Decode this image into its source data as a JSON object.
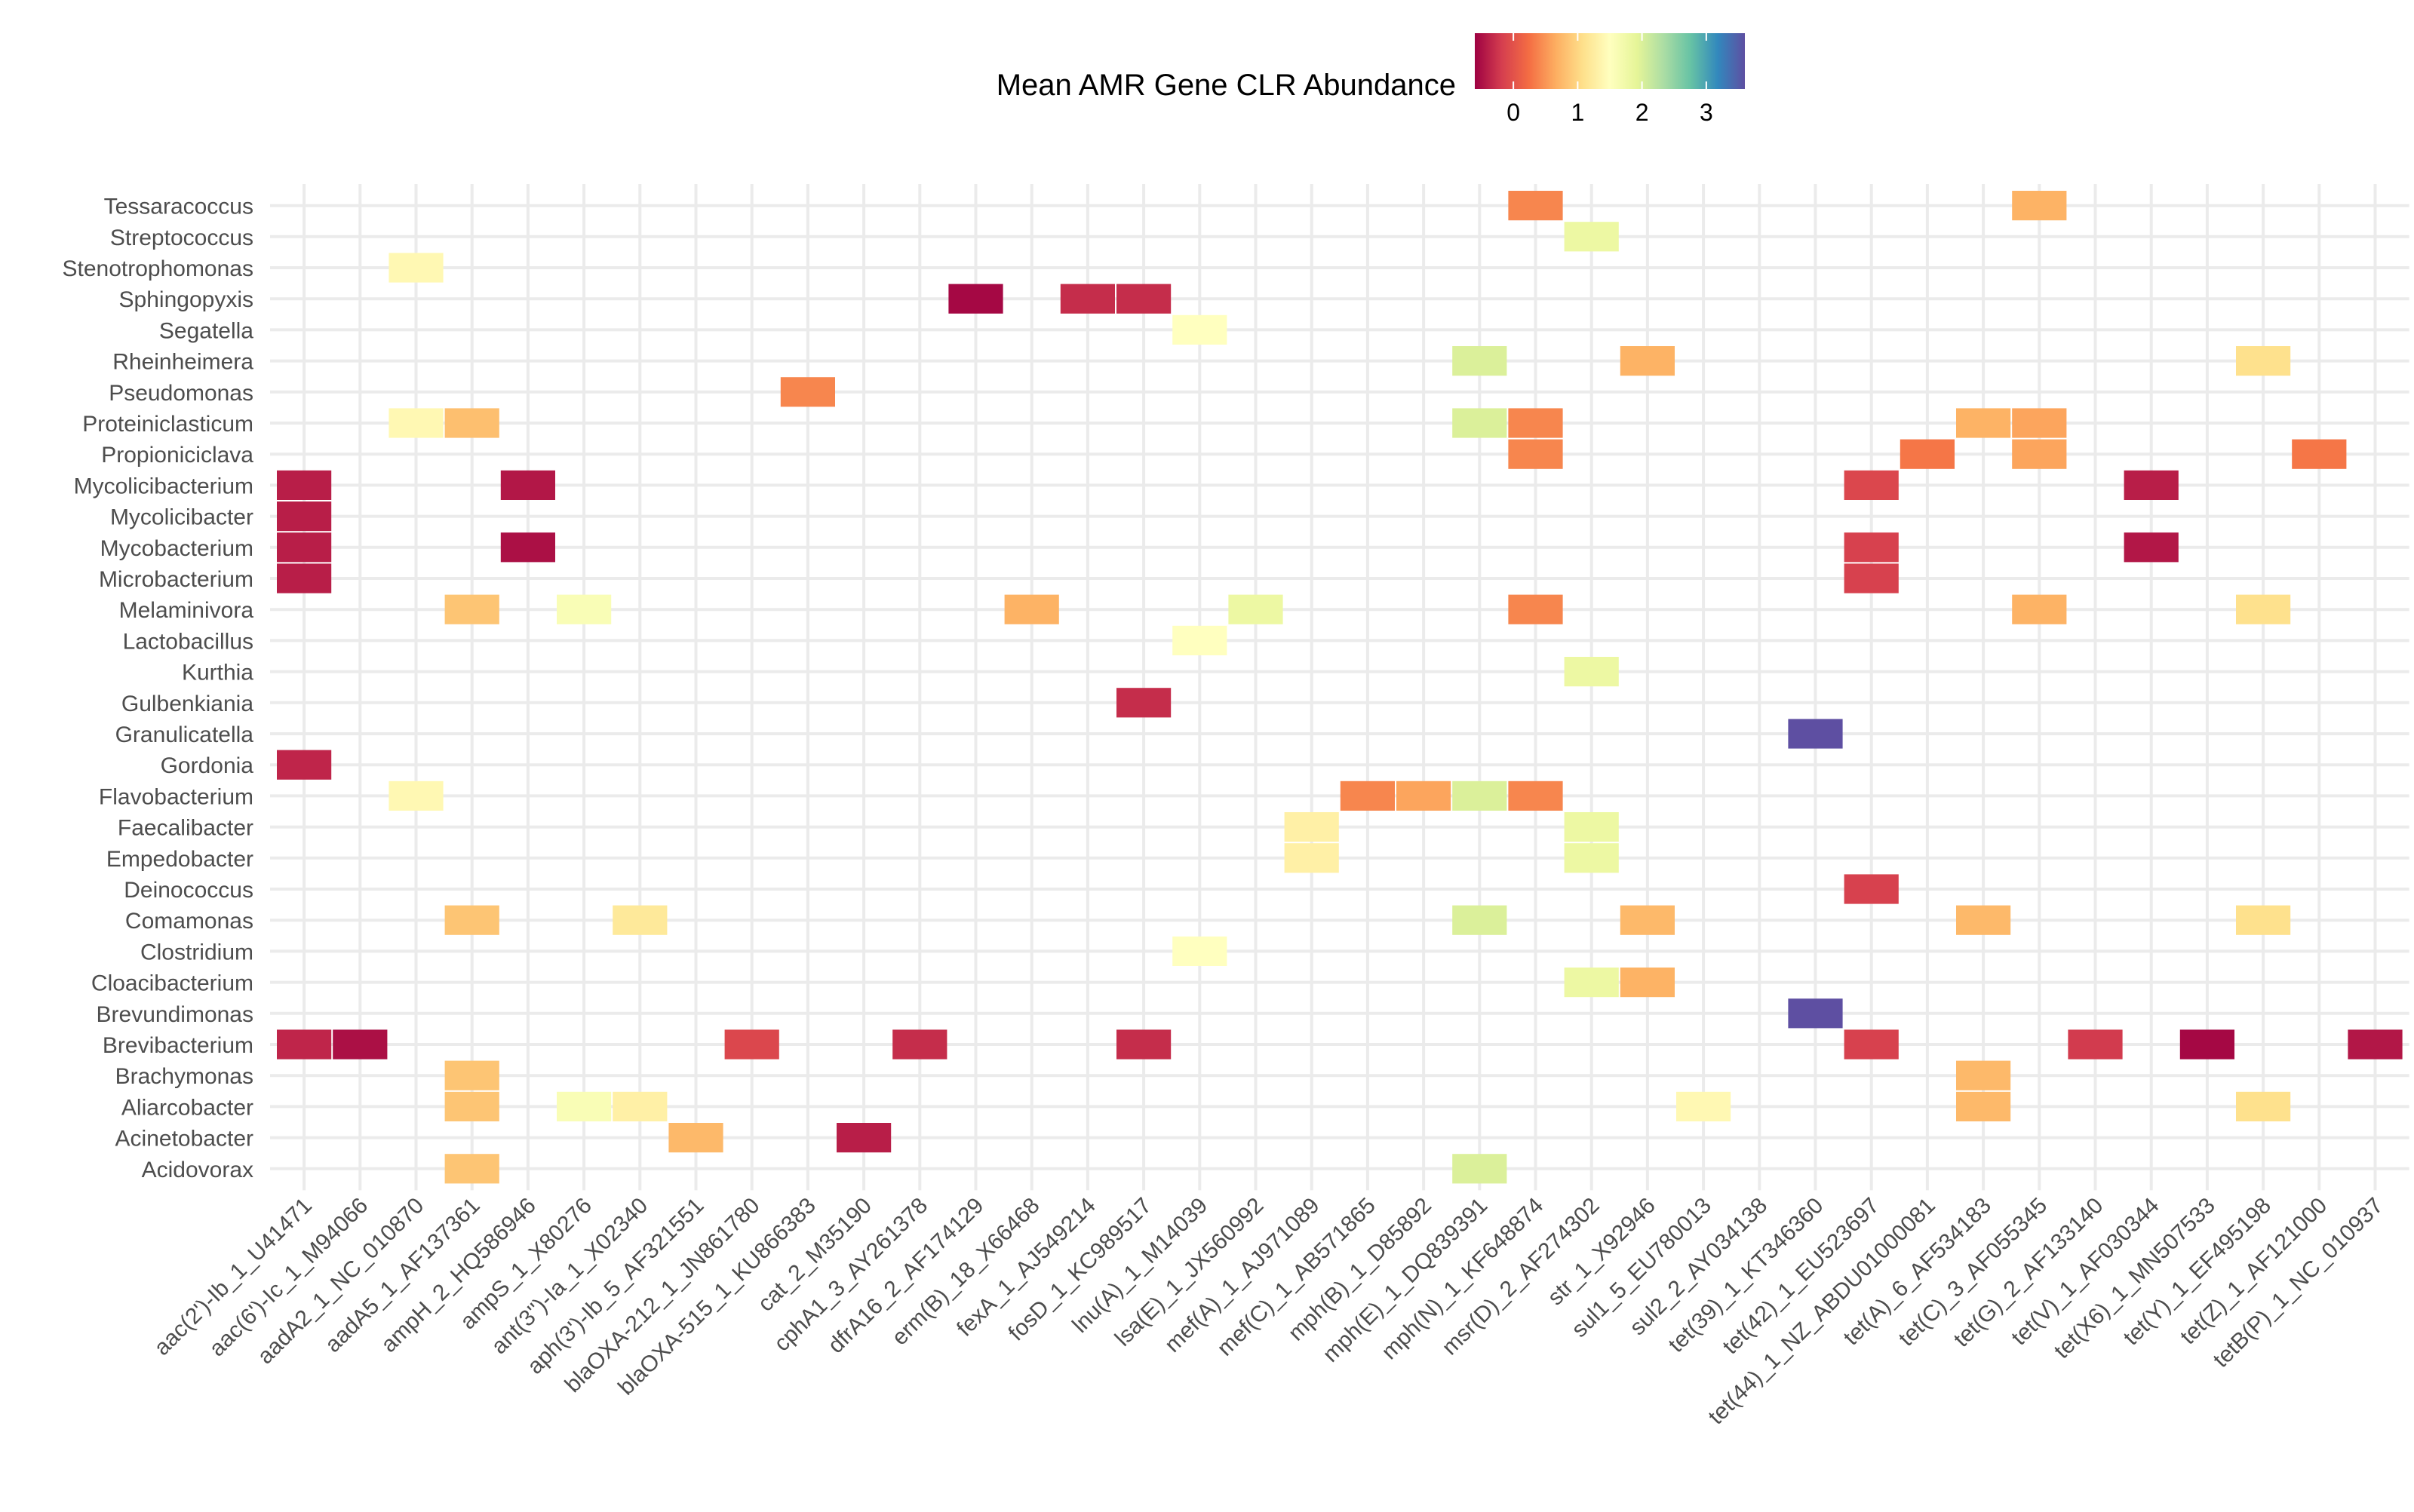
{
  "chart_data": {
    "type": "heatmap",
    "title": "",
    "xlabel": "",
    "ylabel": "",
    "legend": {
      "title": "Mean AMR Gene CLR Abundance",
      "position": "top",
      "ticks": [
        0,
        1,
        2,
        3
      ],
      "range": [
        -0.6,
        3.6
      ],
      "colors": [
        "#9e0142",
        "#d53e4f",
        "#f46d43",
        "#fdae61",
        "#fee08b",
        "#ffffbf",
        "#e6f598",
        "#abdda4",
        "#66c2a5",
        "#3288bd",
        "#5e4fa2"
      ]
    },
    "grid": true,
    "x_categories": [
      "aac(2')-Ib_1_U41471",
      "aac(6')-Ic_1_M94066",
      "aadA2_1_NC_010870",
      "aadA5_1_AF137361",
      "ampH_2_HQ586946",
      "ampS_1_X80276",
      "ant(3'')-Ia_1_X02340",
      "aph(3')-Ib_5_AF321551",
      "blaOXA-212_1_JN861780",
      "blaOXA-515_1_KU866383",
      "cat_2_M35190",
      "cphA1_3_AY261378",
      "dfrA16_2_AF174129",
      "erm(B)_18_X66468",
      "fexA_1_AJ549214",
      "fosD_1_KC989517",
      "lnu(A)_1_M14039",
      "lsa(E)_1_JX560992",
      "mef(A)_1_AJ971089",
      "mef(C)_1_AB571865",
      "mph(B)_1_D85892",
      "mph(E)_1_DQ839391",
      "mph(N)_1_KF648874",
      "msr(D)_2_AF274302",
      "str_1_X92946",
      "sul1_5_EU780013",
      "sul2_2_AY034138",
      "tet(39)_1_KT346360",
      "tet(42)_1_EU523697",
      "tet(44)_1_NZ_ABDU01000081",
      "tet(A)_6_AF534183",
      "tet(C)_3_AF055345",
      "tet(G)_2_AF133140",
      "tet(V)_1_AF030344",
      "tet(X6)_1_MN507533",
      "tet(Y)_1_EF495198",
      "tet(Z)_1_AF121000",
      "tetB(P)_1_NC_010937"
    ],
    "y_categories": [
      "Tessaracoccus",
      "Streptococcus",
      "Stenotrophomonas",
      "Sphingopyxis",
      "Segatella",
      "Rheinheimera",
      "Pseudomonas",
      "Proteiniclasticum",
      "Propioniciclava",
      "Mycolicibacterium",
      "Mycolicibacter",
      "Mycobacterium",
      "Microbacterium",
      "Melaminivora",
      "Lactobacillus",
      "Kurthia",
      "Gulbenkiania",
      "Granulicatella",
      "Gordonia",
      "Flavobacterium",
      "Faecalibacter",
      "Empedobacter",
      "Deinococcus",
      "Comamonas",
      "Clostridium",
      "Cloacibacterium",
      "Brevundimonas",
      "Brevibacterium",
      "Brachymonas",
      "Aliarcobacter",
      "Acinetobacter",
      "Acidovorax"
    ],
    "cells": [
      {
        "y": "Tessaracoccus",
        "x": "mph(N)_1_KF648874",
        "value": 0.4
      },
      {
        "y": "Tessaracoccus",
        "x": "tet(C)_3_AF055345",
        "value": 0.7
      },
      {
        "y": "Streptococcus",
        "x": "msr(D)_2_AF274302",
        "value": 1.8
      },
      {
        "y": "Stenotrophomonas",
        "x": "aadA2_1_NC_010870",
        "value": 1.4
      },
      {
        "y": "Sphingopyxis",
        "x": "dfrA16_2_AF174129",
        "value": -0.55
      },
      {
        "y": "Sphingopyxis",
        "x": "fexA_1_AJ549214",
        "value": -0.3
      },
      {
        "y": "Sphingopyxis",
        "x": "fosD_1_KC989517",
        "value": -0.3
      },
      {
        "y": "Segatella",
        "x": "lnu(A)_1_M14039",
        "value": 1.5
      },
      {
        "y": "Rheinheimera",
        "x": "mph(E)_1_DQ839391",
        "value": 2.0
      },
      {
        "y": "Rheinheimera",
        "x": "str_1_X92946",
        "value": 0.7
      },
      {
        "y": "Rheinheimera",
        "x": "tet(Y)_1_EF495198",
        "value": 1.1
      },
      {
        "y": "Pseudomonas",
        "x": "blaOXA-515_1_KU866383",
        "value": 0.4
      },
      {
        "y": "Proteiniclasticum",
        "x": "aadA2_1_NC_010870",
        "value": 1.4
      },
      {
        "y": "Proteiniclasticum",
        "x": "aadA5_1_AF137361",
        "value": 0.8
      },
      {
        "y": "Proteiniclasticum",
        "x": "mph(E)_1_DQ839391",
        "value": 2.0
      },
      {
        "y": "Proteiniclasticum",
        "x": "mph(N)_1_KF648874",
        "value": 0.4
      },
      {
        "y": "Proteiniclasticum",
        "x": "tet(A)_6_AF534183",
        "value": 0.7
      },
      {
        "y": "Proteiniclasticum",
        "x": "tet(C)_3_AF055345",
        "value": 0.6
      },
      {
        "y": "Propioniciclava",
        "x": "mph(N)_1_KF648874",
        "value": 0.4
      },
      {
        "y": "Propioniciclava",
        "x": "tet(44)_1_NZ_ABDU01000081",
        "value": 0.3
      },
      {
        "y": "Propioniciclava",
        "x": "tet(C)_3_AF055345",
        "value": 0.6
      },
      {
        "y": "Propioniciclava",
        "x": "tet(Z)_1_AF121000",
        "value": 0.3
      },
      {
        "y": "Mycolicibacterium",
        "x": "aac(2')-Ib_1_U41471",
        "value": -0.4
      },
      {
        "y": "Mycolicibacterium",
        "x": "ampH_2_HQ586946",
        "value": -0.45
      },
      {
        "y": "Mycolicibacterium",
        "x": "tet(42)_1_EU523697",
        "value": -0.1
      },
      {
        "y": "Mycolicibacterium",
        "x": "tet(V)_1_AF030344",
        "value": -0.4
      },
      {
        "y": "Mycolicibacter",
        "x": "aac(2')-Ib_1_U41471",
        "value": -0.4
      },
      {
        "y": "Mycobacterium",
        "x": "aac(2')-Ib_1_U41471",
        "value": -0.4
      },
      {
        "y": "Mycobacterium",
        "x": "ampH_2_HQ586946",
        "value": -0.5
      },
      {
        "y": "Mycobacterium",
        "x": "tet(42)_1_EU523697",
        "value": -0.15
      },
      {
        "y": "Mycobacterium",
        "x": "tet(V)_1_AF030344",
        "value": -0.45
      },
      {
        "y": "Microbacterium",
        "x": "aac(2')-Ib_1_U41471",
        "value": -0.4
      },
      {
        "y": "Microbacterium",
        "x": "tet(42)_1_EU523697",
        "value": -0.15
      },
      {
        "y": "Melaminivora",
        "x": "aadA5_1_AF137361",
        "value": 0.85
      },
      {
        "y": "Melaminivora",
        "x": "ampS_1_X80276",
        "value": 1.6
      },
      {
        "y": "Melaminivora",
        "x": "erm(B)_18_X66468",
        "value": 0.7
      },
      {
        "y": "Melaminivora",
        "x": "lsa(E)_1_JX560992",
        "value": 1.8
      },
      {
        "y": "Melaminivora",
        "x": "mph(N)_1_KF648874",
        "value": 0.4
      },
      {
        "y": "Melaminivora",
        "x": "tet(C)_3_AF055345",
        "value": 0.7
      },
      {
        "y": "Melaminivora",
        "x": "tet(Y)_1_EF495198",
        "value": 1.1
      },
      {
        "y": "Lactobacillus",
        "x": "lnu(A)_1_M14039",
        "value": 1.5
      },
      {
        "y": "Kurthia",
        "x": "msr(D)_2_AF274302",
        "value": 1.8
      },
      {
        "y": "Gulbenkiania",
        "x": "fosD_1_KC989517",
        "value": -0.3
      },
      {
        "y": "Granulicatella",
        "x": "tet(39)_1_KT346360",
        "value": 3.6
      },
      {
        "y": "Gordonia",
        "x": "aac(2')-Ib_1_U41471",
        "value": -0.35
      },
      {
        "y": "Flavobacterium",
        "x": "aadA2_1_NC_010870",
        "value": 1.4
      },
      {
        "y": "Flavobacterium",
        "x": "mef(C)_1_AB571865",
        "value": 0.4
      },
      {
        "y": "Flavobacterium",
        "x": "mph(B)_1_D85892",
        "value": 0.6
      },
      {
        "y": "Flavobacterium",
        "x": "mph(E)_1_DQ839391",
        "value": 2.0
      },
      {
        "y": "Flavobacterium",
        "x": "mph(N)_1_KF648874",
        "value": 0.4
      },
      {
        "y": "Faecalibacter",
        "x": "mef(A)_1_AJ971089",
        "value": 1.3
      },
      {
        "y": "Faecalibacter",
        "x": "msr(D)_2_AF274302",
        "value": 1.8
      },
      {
        "y": "Empedobacter",
        "x": "mef(A)_1_AJ971089",
        "value": 1.3
      },
      {
        "y": "Empedobacter",
        "x": "msr(D)_2_AF274302",
        "value": 1.8
      },
      {
        "y": "Deinococcus",
        "x": "tet(42)_1_EU523697",
        "value": -0.15
      },
      {
        "y": "Comamonas",
        "x": "aadA5_1_AF137361",
        "value": 0.85
      },
      {
        "y": "Comamonas",
        "x": "ant(3'')-Ia_1_X02340",
        "value": 1.2
      },
      {
        "y": "Comamonas",
        "x": "mph(E)_1_DQ839391",
        "value": 2.0
      },
      {
        "y": "Comamonas",
        "x": "str_1_X92946",
        "value": 0.75
      },
      {
        "y": "Comamonas",
        "x": "tet(A)_6_AF534183",
        "value": 0.75
      },
      {
        "y": "Comamonas",
        "x": "tet(Y)_1_EF495198",
        "value": 1.1
      },
      {
        "y": "Clostridium",
        "x": "lnu(A)_1_M14039",
        "value": 1.5
      },
      {
        "y": "Cloacibacterium",
        "x": "msr(D)_2_AF274302",
        "value": 1.8
      },
      {
        "y": "Cloacibacterium",
        "x": "str_1_X92946",
        "value": 0.7
      },
      {
        "y": "Brevundimonas",
        "x": "tet(39)_1_KT346360",
        "value": 3.6
      },
      {
        "y": "Brevibacterium",
        "x": "aac(2')-Ib_1_U41471",
        "value": -0.35
      },
      {
        "y": "Brevibacterium",
        "x": "aac(6')-Ic_1_M94066",
        "value": -0.5
      },
      {
        "y": "Brevibacterium",
        "x": "blaOXA-212_1_JN861780",
        "value": -0.1
      },
      {
        "y": "Brevibacterium",
        "x": "cphA1_3_AY261378",
        "value": -0.3
      },
      {
        "y": "Brevibacterium",
        "x": "fosD_1_KC989517",
        "value": -0.3
      },
      {
        "y": "Brevibacterium",
        "x": "tet(42)_1_EU523697",
        "value": -0.15
      },
      {
        "y": "Brevibacterium",
        "x": "tet(G)_2_AF133140",
        "value": -0.2
      },
      {
        "y": "Brevibacterium",
        "x": "tet(X6)_1_MN507533",
        "value": -0.55
      },
      {
        "y": "Brevibacterium",
        "x": "tetB(P)_1_NC_010937",
        "value": -0.45
      },
      {
        "y": "Brachymonas",
        "x": "aadA5_1_AF137361",
        "value": 0.85
      },
      {
        "y": "Brachymonas",
        "x": "tet(A)_6_AF534183",
        "value": 0.75
      },
      {
        "y": "Aliarcobacter",
        "x": "aadA5_1_AF137361",
        "value": 0.85
      },
      {
        "y": "Aliarcobacter",
        "x": "ampS_1_X80276",
        "value": 1.6
      },
      {
        "y": "Aliarcobacter",
        "x": "ant(3'')-Ia_1_X02340",
        "value": 1.3
      },
      {
        "y": "Aliarcobacter",
        "x": "sul1_5_EU780013",
        "value": 1.4
      },
      {
        "y": "Aliarcobacter",
        "x": "tet(A)_6_AF534183",
        "value": 0.75
      },
      {
        "y": "Aliarcobacter",
        "x": "tet(Y)_1_EF495198",
        "value": 1.1
      },
      {
        "y": "Acinetobacter",
        "x": "aph(3')-Ib_5_AF321551",
        "value": 0.75
      },
      {
        "y": "Acinetobacter",
        "x": "cat_2_M35190",
        "value": -0.4
      },
      {
        "y": "Acidovorax",
        "x": "aadA5_1_AF137361",
        "value": 0.85
      },
      {
        "y": "Acidovorax",
        "x": "mph(E)_1_DQ839391",
        "value": 2.0
      }
    ]
  }
}
